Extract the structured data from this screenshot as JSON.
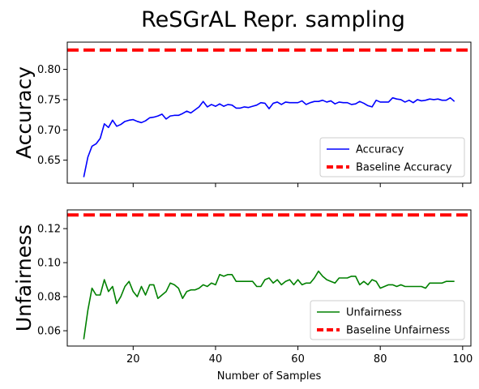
{
  "figure": {
    "title": "ReSGrAL Repr. sampling"
  },
  "chart_data": [
    {
      "type": "line",
      "ylabel": "Accuracy",
      "xlabel": "",
      "xlim": [
        4,
        102
      ],
      "ylim": [
        0.612,
        0.845
      ],
      "xticks": [
        20,
        40,
        60,
        80,
        100
      ],
      "yticks": [
        0.65,
        0.7,
        0.75,
        0.8
      ],
      "ytick_labels": [
        "0.65",
        "0.70",
        "0.75",
        "0.80"
      ],
      "legend_position": "lower right",
      "series": [
        {
          "name": "Accuracy",
          "color": "#0000ff",
          "style": "solid",
          "x": [
            8,
            9,
            10,
            11,
            12,
            13,
            14,
            15,
            16,
            17,
            18,
            19,
            20,
            21,
            22,
            23,
            24,
            25,
            26,
            27,
            28,
            29,
            30,
            31,
            32,
            33,
            34,
            35,
            36,
            37,
            38,
            39,
            40,
            41,
            42,
            43,
            44,
            45,
            46,
            47,
            48,
            49,
            50,
            51,
            52,
            53,
            54,
            55,
            56,
            57,
            58,
            59,
            60,
            61,
            62,
            63,
            64,
            65,
            66,
            67,
            68,
            69,
            70,
            71,
            72,
            73,
            74,
            75,
            76,
            77,
            78,
            79,
            80,
            81,
            82,
            83,
            84,
            85,
            86,
            87,
            88,
            89,
            90,
            91,
            92,
            93,
            94,
            95,
            96,
            97,
            98
          ],
          "y": [
            0.622,
            0.655,
            0.673,
            0.677,
            0.686,
            0.71,
            0.704,
            0.716,
            0.706,
            0.709,
            0.714,
            0.716,
            0.717,
            0.714,
            0.712,
            0.715,
            0.72,
            0.721,
            0.723,
            0.726,
            0.718,
            0.723,
            0.724,
            0.724,
            0.727,
            0.731,
            0.728,
            0.733,
            0.738,
            0.747,
            0.738,
            0.742,
            0.739,
            0.743,
            0.739,
            0.742,
            0.741,
            0.736,
            0.736,
            0.738,
            0.737,
            0.739,
            0.741,
            0.745,
            0.744,
            0.735,
            0.744,
            0.746,
            0.742,
            0.746,
            0.745,
            0.745,
            0.745,
            0.748,
            0.742,
            0.745,
            0.747,
            0.747,
            0.749,
            0.746,
            0.748,
            0.743,
            0.746,
            0.745,
            0.745,
            0.742,
            0.743,
            0.747,
            0.744,
            0.74,
            0.738,
            0.749,
            0.746,
            0.746,
            0.746,
            0.753,
            0.751,
            0.75,
            0.746,
            0.749,
            0.745,
            0.75,
            0.748,
            0.749,
            0.751,
            0.75,
            0.751,
            0.749,
            0.749,
            0.753,
            0.747
          ]
        },
        {
          "name": "Baseline Accuracy",
          "color": "#ff0000",
          "style": "dashed",
          "x": [
            4,
            102
          ],
          "y": [
            0.832,
            0.832
          ]
        }
      ]
    },
    {
      "type": "line",
      "ylabel": "Unfairness",
      "xlabel": "Number of Samples",
      "xlim": [
        4,
        102
      ],
      "ylim": [
        0.051,
        0.131
      ],
      "xticks": [
        20,
        40,
        60,
        80,
        100
      ],
      "xtick_labels": [
        "20",
        "40",
        "60",
        "80",
        "100"
      ],
      "yticks": [
        0.06,
        0.08,
        0.1,
        0.12
      ],
      "ytick_labels": [
        "0.06",
        "0.08",
        "0.10",
        "0.12"
      ],
      "legend_position": "lower right",
      "series": [
        {
          "name": "Unfairness",
          "color": "#008000",
          "style": "solid",
          "x": [
            8,
            9,
            10,
            11,
            12,
            13,
            14,
            15,
            16,
            17,
            18,
            19,
            20,
            21,
            22,
            23,
            24,
            25,
            26,
            27,
            28,
            29,
            30,
            31,
            32,
            33,
            34,
            35,
            36,
            37,
            38,
            39,
            40,
            41,
            42,
            43,
            44,
            45,
            46,
            47,
            48,
            49,
            50,
            51,
            52,
            53,
            54,
            55,
            56,
            57,
            58,
            59,
            60,
            61,
            62,
            63,
            64,
            65,
            66,
            67,
            68,
            69,
            70,
            71,
            72,
            73,
            74,
            75,
            76,
            77,
            78,
            79,
            80,
            81,
            82,
            83,
            84,
            85,
            86,
            87,
            88,
            89,
            90,
            91,
            92,
            93,
            94,
            95,
            96,
            97,
            98
          ],
          "y": [
            0.055,
            0.072,
            0.085,
            0.081,
            0.081,
            0.09,
            0.083,
            0.086,
            0.076,
            0.08,
            0.086,
            0.089,
            0.083,
            0.08,
            0.086,
            0.081,
            0.087,
            0.087,
            0.079,
            0.081,
            0.083,
            0.088,
            0.087,
            0.085,
            0.079,
            0.083,
            0.084,
            0.084,
            0.085,
            0.087,
            0.086,
            0.088,
            0.087,
            0.093,
            0.092,
            0.093,
            0.093,
            0.089,
            0.089,
            0.089,
            0.089,
            0.089,
            0.086,
            0.086,
            0.09,
            0.091,
            0.088,
            0.09,
            0.087,
            0.089,
            0.09,
            0.087,
            0.09,
            0.087,
            0.088,
            0.088,
            0.091,
            0.095,
            0.092,
            0.09,
            0.089,
            0.088,
            0.091,
            0.091,
            0.091,
            0.092,
            0.092,
            0.087,
            0.089,
            0.087,
            0.09,
            0.089,
            0.085,
            0.086,
            0.087,
            0.087,
            0.086,
            0.087,
            0.086,
            0.086,
            0.086,
            0.086,
            0.086,
            0.085,
            0.088,
            0.088,
            0.088,
            0.088,
            0.089,
            0.089,
            0.089
          ]
        },
        {
          "name": "Baseline Unfairness",
          "color": "#ff0000",
          "style": "dashed",
          "x": [
            4,
            102
          ],
          "y": [
            0.128,
            0.128
          ]
        }
      ]
    }
  ]
}
